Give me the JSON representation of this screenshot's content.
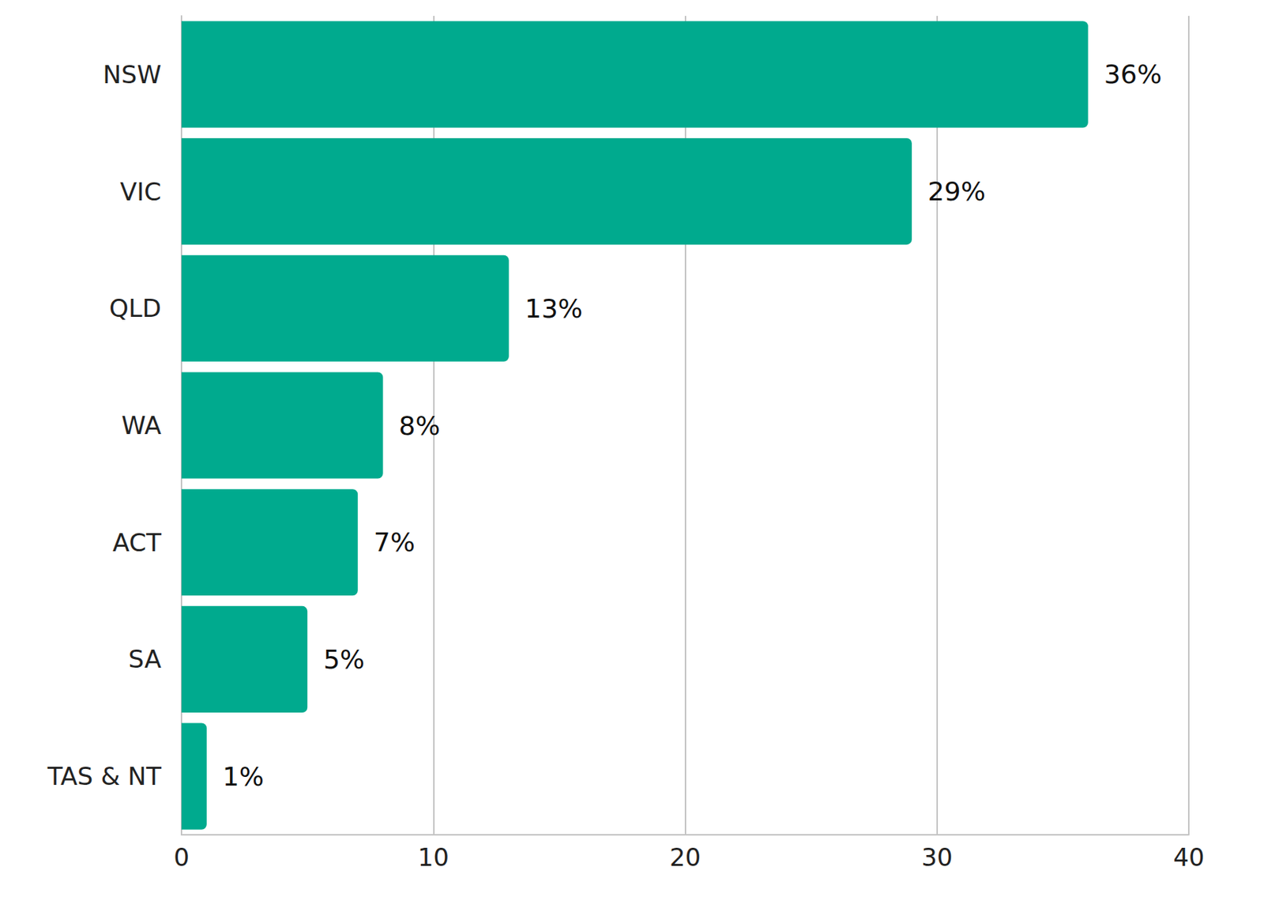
{
  "chart_data": {
    "type": "bar",
    "orientation": "horizontal",
    "categories": [
      "NSW",
      "VIC",
      "QLD",
      "WA",
      "ACT",
      "SA",
      "TAS & NT"
    ],
    "values": [
      36,
      29,
      13,
      8,
      7,
      5,
      1
    ],
    "value_labels": [
      "36%",
      "29%",
      "13%",
      "8%",
      "7%",
      "5%",
      "1%"
    ],
    "color": "#00aa8e",
    "xlim": [
      0,
      40
    ],
    "xticks": [
      0,
      10,
      20,
      30,
      40
    ],
    "grid": true,
    "data_labels": true
  }
}
